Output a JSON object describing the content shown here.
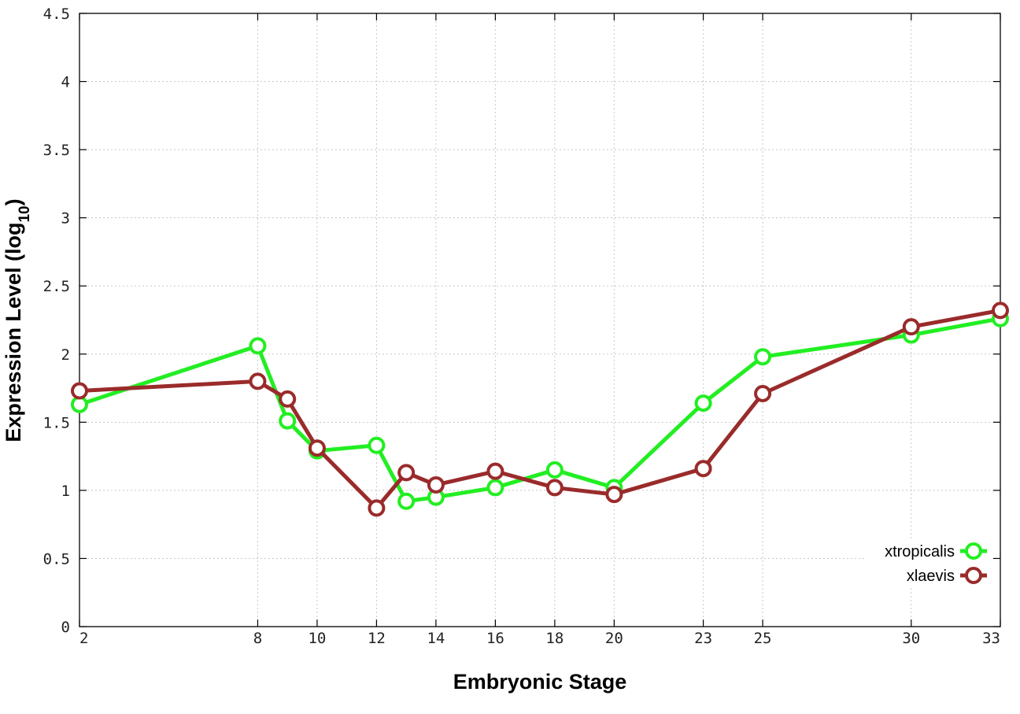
{
  "chart_data": {
    "type": "line",
    "title": "",
    "xlabel": "Embryonic Stage",
    "ylabel_main": "Expression Level (log",
    "ylabel_sub": "10",
    "ylabel_close": ")",
    "xlim": [
      2,
      33
    ],
    "ylim": [
      0,
      4.5
    ],
    "x_ticks": [
      {
        "value": 2,
        "label": "2"
      },
      {
        "value": 8,
        "label": "8"
      },
      {
        "value": 10,
        "label": "10"
      },
      {
        "value": 12,
        "label": "12"
      },
      {
        "value": 14,
        "label": "14"
      },
      {
        "value": 16,
        "label": "16"
      },
      {
        "value": 18,
        "label": "18"
      },
      {
        "value": 20,
        "label": "20"
      },
      {
        "value": 23,
        "label": "23"
      },
      {
        "value": 25,
        "label": "25"
      },
      {
        "value": 30,
        "label": "30"
      },
      {
        "value": 33,
        "label": "33"
      }
    ],
    "y_ticks": [
      {
        "value": 0,
        "label": "0"
      },
      {
        "value": 0.5,
        "label": "0.5"
      },
      {
        "value": 1,
        "label": "1"
      },
      {
        "value": 1.5,
        "label": "1.5"
      },
      {
        "value": 2,
        "label": "2"
      },
      {
        "value": 2.5,
        "label": "2.5"
      },
      {
        "value": 3,
        "label": "3"
      },
      {
        "value": 3.5,
        "label": "3.5"
      },
      {
        "value": 4,
        "label": "4"
      },
      {
        "value": 4.5,
        "label": "4.5"
      }
    ],
    "grid": true,
    "legend_position": "bottom-right",
    "series": [
      {
        "name": "xtropicalis",
        "color": "#22ee22",
        "x": [
          2,
          8,
          9,
          10,
          12,
          13,
          14,
          16,
          18,
          20,
          23,
          25,
          30,
          33
        ],
        "y": [
          1.63,
          2.06,
          1.51,
          1.29,
          1.33,
          0.92,
          0.95,
          1.02,
          1.15,
          1.02,
          1.64,
          1.98,
          2.14,
          2.26
        ]
      },
      {
        "name": "xlaevis",
        "color": "#9a2b2b",
        "x": [
          2,
          8,
          9,
          10,
          12,
          13,
          14,
          16,
          18,
          20,
          23,
          25,
          30,
          33
        ],
        "y": [
          1.73,
          1.8,
          1.67,
          1.31,
          0.87,
          1.13,
          1.04,
          1.14,
          1.02,
          0.97,
          1.16,
          1.71,
          2.2,
          2.32
        ]
      }
    ]
  }
}
